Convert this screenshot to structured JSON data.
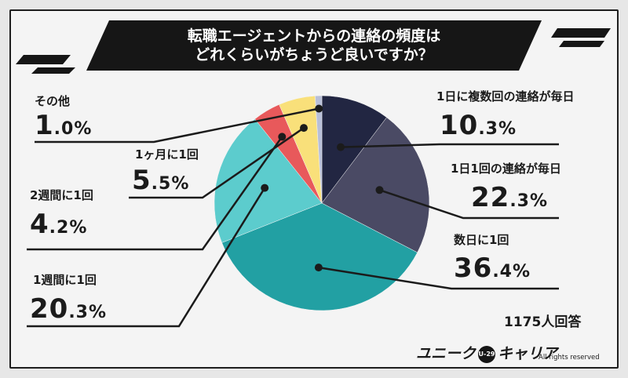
{
  "title": {
    "line1": "転職エージェントからの連絡の頻度は",
    "line2": "どれくらいがちょうど良いですか？"
  },
  "respondents": "1175人回答",
  "brand": {
    "name_left": "ユニーク",
    "badge": "U-29",
    "name_right": "キャリア",
    "rights": "All rights reserved"
  },
  "chart_data": {
    "type": "pie",
    "title": "転職エージェントからの連絡の頻度はどれくらいがちょうど良いですか？",
    "unit": "%",
    "start_angle_deg": 0,
    "direction": "clockwise",
    "slices": [
      {
        "label": "1日に複数回の連絡が毎日",
        "value": 10.3,
        "display": "10.3%",
        "color": "#222642"
      },
      {
        "label": "1日1回の連絡が毎日",
        "value": 22.3,
        "display": "22.3%",
        "color": "#4a4a64"
      },
      {
        "label": "数日に1回",
        "value": 36.4,
        "display": "36.4%",
        "color": "#22a0a3"
      },
      {
        "label": "1週間に1回",
        "value": 20.3,
        "display": "20.3%",
        "color": "#5ccccd"
      },
      {
        "label": "2週間に1回",
        "value": 4.2,
        "display": "4.2%",
        "color": "#e8595b"
      },
      {
        "label": "1ヶ月に1回",
        "value": 5.5,
        "display": "5.5%",
        "color": "#f9e07a"
      },
      {
        "label": "その他",
        "value": 1.0,
        "display": "1.0%",
        "color": "#b8bfd8"
      }
    ]
  }
}
